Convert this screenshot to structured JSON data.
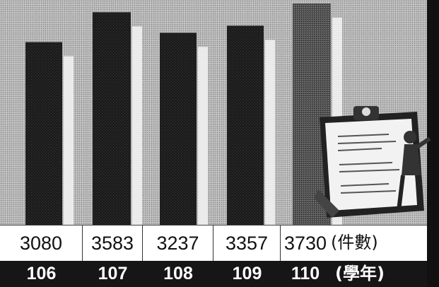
{
  "chart_data": {
    "type": "bar",
    "categories": [
      "106",
      "107",
      "108",
      "109",
      "110"
    ],
    "values": [
      3080,
      3583,
      3237,
      3357,
      3730
    ],
    "value_labels": [
      "3080",
      "3583",
      "3237",
      "3357",
      "3730"
    ],
    "value_unit": "(件數)",
    "category_unit": "(學年)",
    "ylim": [
      0,
      3730
    ]
  },
  "colors": {
    "bar": "#1c1c1c",
    "bar_last": "#4a4a4a",
    "value_row": "#ffffff",
    "year_row": "#161616"
  },
  "illustration": {
    "icon": "clipboard-with-person-icon"
  }
}
